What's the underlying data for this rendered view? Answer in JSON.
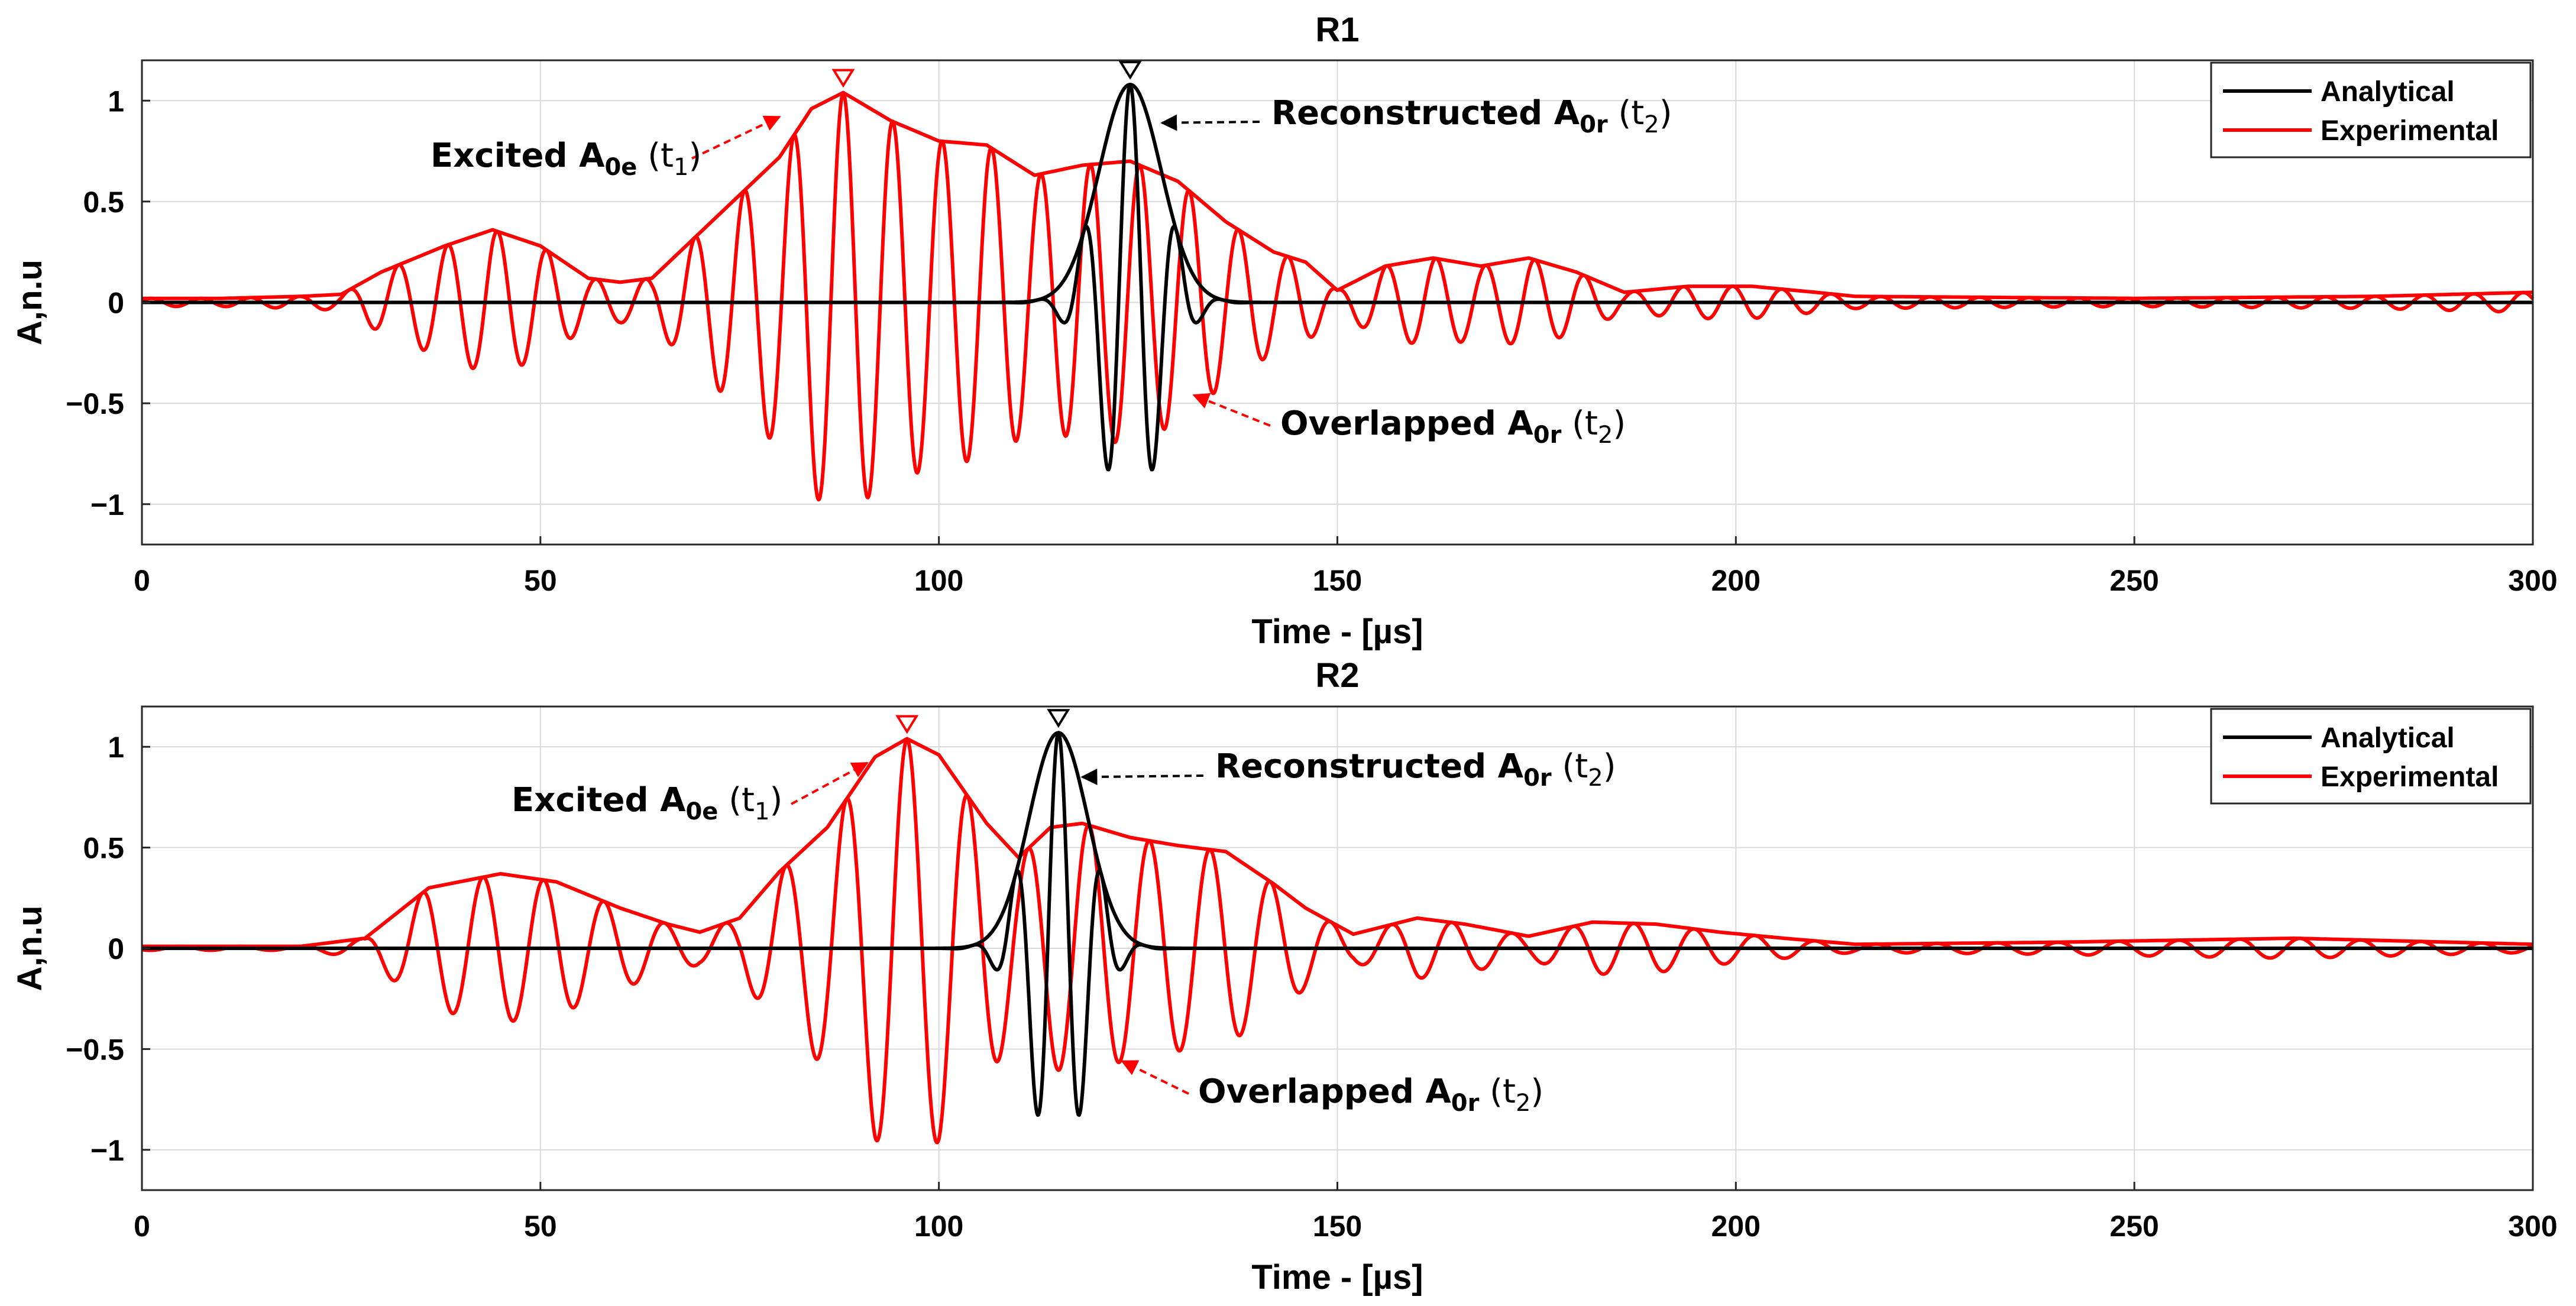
{
  "chart_data": [
    {
      "type": "line",
      "title": "R1",
      "xlabel": "Time - [µs]",
      "ylabel": "A,n.u",
      "xlim": [
        0,
        300
      ],
      "ylim": [
        -1.2,
        1.2
      ],
      "xticks": [
        0,
        50,
        100,
        150,
        200,
        250,
        300
      ],
      "yticks": [
        1,
        0.5,
        0,
        -0.5,
        -1
      ],
      "yticklabels": [
        "1",
        "0.5",
        "0",
        "−0.5",
        "−1"
      ],
      "grid": true,
      "legend_position": "top-right",
      "series": [
        {
          "name": "Analytical",
          "color": "#000000",
          "kind": "wave_packet",
          "center": 124,
          "amplitude": 1.08,
          "width": 5.5,
          "period": 5.8,
          "peak_marker_value": 1.08
        },
        {
          "name": "Experimental",
          "color": "#ff0000",
          "kind": "modulated_wave",
          "period": 6.2,
          "phase_anchor": 88,
          "envelope": [
            [
              0,
              0.02
            ],
            [
              10,
              0.02
            ],
            [
              20,
              0.03
            ],
            [
              25,
              0.04
            ],
            [
              30,
              0.15
            ],
            [
              38,
              0.28
            ],
            [
              44,
              0.36
            ],
            [
              50,
              0.28
            ],
            [
              56,
              0.12
            ],
            [
              60,
              0.1
            ],
            [
              64,
              0.12
            ],
            [
              72,
              0.42
            ],
            [
              80,
              0.72
            ],
            [
              84,
              0.96
            ],
            [
              88,
              1.04
            ],
            [
              94,
              0.9
            ],
            [
              100,
              0.8
            ],
            [
              106,
              0.78
            ],
            [
              112,
              0.63
            ],
            [
              118,
              0.68
            ],
            [
              124,
              0.7
            ],
            [
              130,
              0.6
            ],
            [
              136,
              0.4
            ],
            [
              142,
              0.25
            ],
            [
              146,
              0.2
            ],
            [
              150,
              0.06
            ],
            [
              156,
              0.18
            ],
            [
              162,
              0.22
            ],
            [
              168,
              0.18
            ],
            [
              174,
              0.22
            ],
            [
              180,
              0.15
            ],
            [
              186,
              0.05
            ],
            [
              194,
              0.08
            ],
            [
              202,
              0.08
            ],
            [
              210,
              0.05
            ],
            [
              215,
              0.03
            ],
            [
              250,
              0.02
            ],
            [
              280,
              0.03
            ],
            [
              300,
              0.05
            ]
          ],
          "peak_marker_value": 1.04
        }
      ],
      "annotations": [
        {
          "label": "Excited A",
          "subscript": "0e",
          "suffix": "(t",
          "time_sub": "1",
          "close": ")",
          "points_to": [
            80,
            0.92
          ],
          "arrow_color": "#ff0000"
        },
        {
          "label": "Reconstructed A",
          "subscript": "0r",
          "suffix": "(t",
          "time_sub": "2",
          "close": ")",
          "points_to": [
            128,
            0.89
          ],
          "arrow_color": "#000000"
        },
        {
          "label": "Overlapped A",
          "subscript": "0r",
          "suffix": "(t",
          "time_sub": "2",
          "close": ")",
          "points_to": [
            132,
            -0.46
          ],
          "arrow_color": "#ff0000"
        }
      ]
    },
    {
      "type": "line",
      "title": "R2",
      "xlabel": "Time - [µs]",
      "ylabel": "A,n.u",
      "xlim": [
        0,
        300
      ],
      "ylim": [
        -1.2,
        1.2
      ],
      "xticks": [
        0,
        50,
        100,
        150,
        200,
        250,
        300
      ],
      "yticks": [
        1,
        0.5,
        0,
        -0.5,
        -1
      ],
      "yticklabels": [
        "1",
        "0.5",
        "0",
        "−0.5",
        "−1"
      ],
      "grid": true,
      "legend_position": "top-right",
      "series": [
        {
          "name": "Analytical",
          "color": "#000000",
          "kind": "wave_packet",
          "center": 115,
          "amplitude": 1.07,
          "width": 5.2,
          "period": 5.4,
          "peak_marker_value": 1.07
        },
        {
          "name": "Experimental",
          "color": "#ff0000",
          "kind": "modulated_wave",
          "period": 7.6,
          "phase_anchor": 96,
          "envelope": [
            [
              0,
              0.01
            ],
            [
              20,
              0.01
            ],
            [
              28,
              0.05
            ],
            [
              36,
              0.3
            ],
            [
              45,
              0.37
            ],
            [
              52,
              0.33
            ],
            [
              60,
              0.2
            ],
            [
              66,
              0.12
            ],
            [
              70,
              0.08
            ],
            [
              75,
              0.15
            ],
            [
              80,
              0.38
            ],
            [
              86,
              0.6
            ],
            [
              92,
              0.95
            ],
            [
              96,
              1.04
            ],
            [
              100,
              0.96
            ],
            [
              106,
              0.62
            ],
            [
              110,
              0.45
            ],
            [
              114,
              0.6
            ],
            [
              118,
              0.62
            ],
            [
              124,
              0.55
            ],
            [
              130,
              0.51
            ],
            [
              136,
              0.48
            ],
            [
              142,
              0.32
            ],
            [
              146,
              0.2
            ],
            [
              152,
              0.07
            ],
            [
              160,
              0.15
            ],
            [
              166,
              0.12
            ],
            [
              174,
              0.06
            ],
            [
              182,
              0.13
            ],
            [
              190,
              0.12
            ],
            [
              198,
              0.08
            ],
            [
              206,
              0.05
            ],
            [
              215,
              0.02
            ],
            [
              240,
              0.03
            ],
            [
              270,
              0.05
            ],
            [
              300,
              0.02
            ]
          ],
          "peak_marker_value": 1.04
        }
      ],
      "annotations": [
        {
          "label": "Excited A",
          "subscript": "0e",
          "suffix": "(t",
          "time_sub": "1",
          "close": ")",
          "points_to": [
            91,
            0.92
          ],
          "arrow_color": "#ff0000"
        },
        {
          "label": "Reconstructed A",
          "subscript": "0r",
          "suffix": "(t",
          "time_sub": "2",
          "close": ")",
          "points_to": [
            118,
            0.85
          ],
          "arrow_color": "#000000"
        },
        {
          "label": "Overlapped A",
          "subscript": "0r",
          "suffix": "(t",
          "time_sub": "2",
          "close": ")",
          "points_to": [
            123,
            -0.56
          ],
          "arrow_color": "#ff0000"
        }
      ]
    }
  ]
}
